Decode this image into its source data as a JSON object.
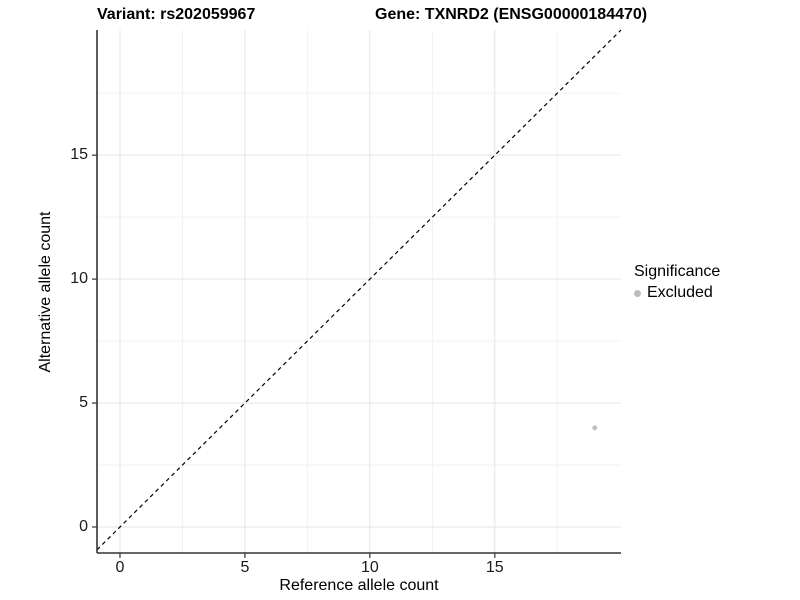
{
  "titles": {
    "variant": "Variant: rs202059967",
    "gene": "Gene: TXNRD2 (ENSG00000184470)"
  },
  "legend": {
    "title": "Significance",
    "items": [
      {
        "label": "Excluded",
        "color": "#bdbdbd"
      }
    ]
  },
  "chart_data": {
    "type": "scatter",
    "title": "Variant: rs202059967 / Gene: TXNRD2 (ENSG00000184470)",
    "xlabel": "Reference allele count",
    "ylabel": "Alternative allele count",
    "xlim": [
      -0.92,
      20.05
    ],
    "ylim": [
      -1.05,
      20.05
    ],
    "x_ticks": [
      0,
      5,
      10,
      15
    ],
    "y_ticks": [
      0,
      5,
      10,
      15
    ],
    "x_minor_breaks": [
      2.5,
      7.5,
      12.5,
      17.5
    ],
    "y_minor_breaks": [
      2.5,
      7.5,
      12.5,
      17.5
    ],
    "grid": true,
    "legend_position": "right",
    "series": [
      {
        "name": "Excluded",
        "color": "#bdbdbd",
        "points": [
          {
            "x": 19,
            "y": 4
          }
        ]
      }
    ],
    "reference_line": {
      "slope": 1,
      "intercept": 0,
      "style": "dashed",
      "color": "#000000"
    }
  },
  "style": {
    "axis_line_color": "#333333",
    "major_grid_color": "#e5e5e5",
    "minor_grid_color": "#f2f2f2",
    "panel_bg": "#ffffff"
  }
}
